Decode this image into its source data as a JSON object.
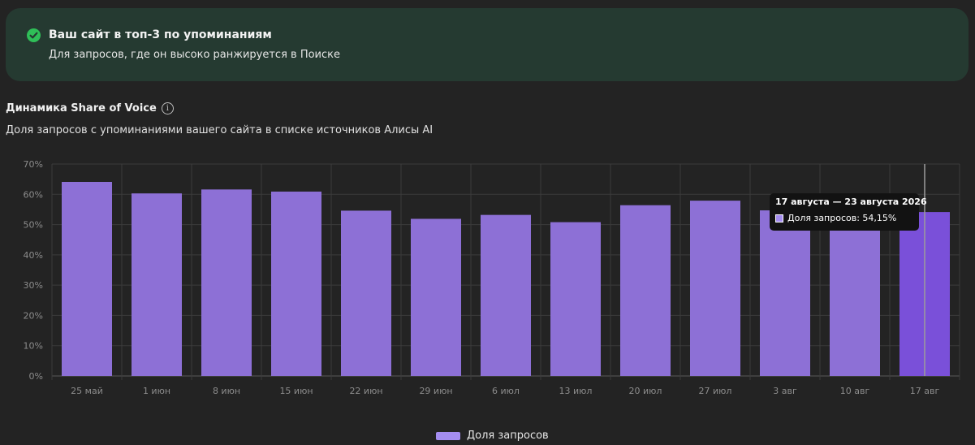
{
  "banner": {
    "title": "Ваш сайт в топ-3 по упоминаниям",
    "subtitle": "Для запросов, где он высоко ранжируется в Поиске",
    "icon": "check-circle-icon",
    "icon_color": "#2fbf58",
    "background": "#253a31"
  },
  "section": {
    "title": "Динамика Share of Voice",
    "subtitle": "Доля запросов с упоминаниями вашего сайта в списке источников Алисы AI",
    "info_icon": "info-icon"
  },
  "chart_data": {
    "type": "bar",
    "categories": [
      "25 май",
      "1 июн",
      "8 июн",
      "15 июн",
      "22 июн",
      "29 июн",
      "6 июл",
      "13 июл",
      "20 июл",
      "27 июл",
      "3 авг",
      "10 авг",
      "17 авг"
    ],
    "series": [
      {
        "name": "Доля запросов",
        "values": [
          64.1,
          60.3,
          61.6,
          60.9,
          54.6,
          51.9,
          53.2,
          50.8,
          56.4,
          57.9,
          54.7,
          54.3,
          54.15
        ],
        "color": "#8d70d6",
        "highlight_color": "#7a50d9"
      }
    ],
    "ylim": [
      0,
      70
    ],
    "yticks": [
      "0%",
      "10%",
      "20%",
      "30%",
      "40%",
      "50%",
      "60%",
      "70%"
    ],
    "ytick_values": [
      0,
      10,
      20,
      30,
      40,
      50,
      60,
      70
    ],
    "highlighted_index": 12,
    "grid": true,
    "legend_position": "bottom-center",
    "tooltip": {
      "title": "17 августа — 23 августа 2026",
      "label": "Доля запросов: 54,15%"
    }
  },
  "legend": {
    "label": "Доля запросов",
    "swatch_color": "#a48df0"
  }
}
